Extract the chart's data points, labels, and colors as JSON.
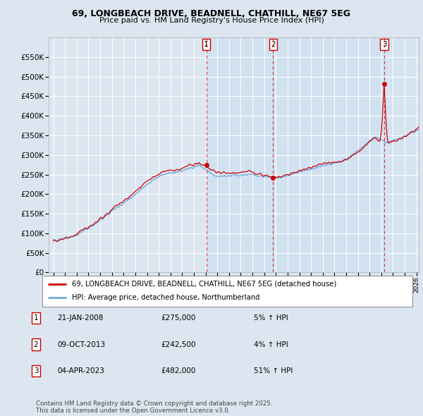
{
  "title": "69, LONGBEACH DRIVE, BEADNELL, CHATHILL, NE67 5EG",
  "subtitle": "Price paid vs. HM Land Registry's House Price Index (HPI)",
  "background_color": "#dce6f1",
  "plot_bg_color": "#dce6f1",
  "shade_color": "#c5d9f0",
  "ylim": [
    0,
    600000
  ],
  "yticks": [
    0,
    50000,
    100000,
    150000,
    200000,
    250000,
    300000,
    350000,
    400000,
    450000,
    500000,
    550000
  ],
  "ytick_labels": [
    "£0",
    "£50K",
    "£100K",
    "£150K",
    "£200K",
    "£250K",
    "£300K",
    "£350K",
    "£400K",
    "£450K",
    "£500K",
    "£550K"
  ],
  "xlim_start": 1994.6,
  "xlim_end": 2026.2,
  "sale_dates": [
    2008.054,
    2013.769,
    2023.253
  ],
  "sale_prices": [
    275000,
    242500,
    482000
  ],
  "sale_labels": [
    "1",
    "2",
    "3"
  ],
  "hpi_line_color": "#6fa8dc",
  "price_line_color": "#cc0000",
  "sale_marker_color": "#cc0000",
  "grid_color": "#ffffff",
  "legend1": "69, LONGBEACH DRIVE, BEADNELL, CHATHILL, NE67 5EG (detached house)",
  "legend2": "HPI: Average price, detached house, Northumberland",
  "table_entries": [
    {
      "label": "1",
      "date": "21-JAN-2008",
      "price": "£275,000",
      "pct": "5% ↑ HPI"
    },
    {
      "label": "2",
      "date": "09-OCT-2013",
      "price": "£242,500",
      "pct": "4% ↑ HPI"
    },
    {
      "label": "3",
      "date": "04-APR-2023",
      "price": "£482,000",
      "pct": "51% ↑ HPI"
    }
  ],
  "footer": "Contains HM Land Registry data © Crown copyright and database right 2025.\nThis data is licensed under the Open Government Licence v3.0."
}
